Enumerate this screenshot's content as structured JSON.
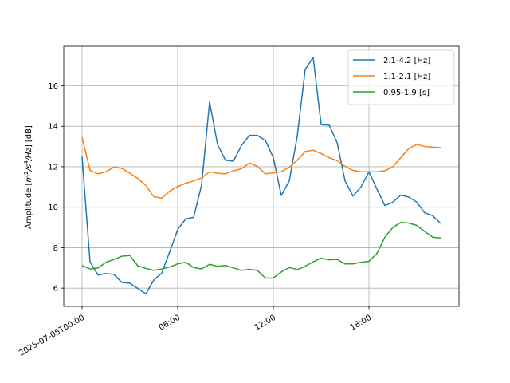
{
  "chart_data": {
    "type": "line",
    "title": "",
    "xlabel": "",
    "ylabel": "Amplitude [m^2/s^4/Hz] [dB]",
    "ylabel_parts": {
      "prefix": "Amplitude [",
      "unit_m": "m",
      "exp_m": "2",
      "slash1": "/",
      "unit_s": "s",
      "exp_s": "4",
      "rest": "/Hz",
      "suffix": "] [dB]"
    },
    "x_ticks": [
      {
        "hour": 0,
        "label": "2025-07-05T00:00"
      },
      {
        "hour": 6,
        "label": "06:00"
      },
      {
        "hour": 12,
        "label": "12:00"
      },
      {
        "hour": 18,
        "label": "18:00"
      }
    ],
    "y_ticks": [
      6,
      8,
      10,
      12,
      14,
      16
    ],
    "xlim_hours": [
      -1.15,
      23.65
    ],
    "ylim": [
      5.1,
      17.95
    ],
    "grid": true,
    "legend_position": "top-right",
    "x_hours": [
      0,
      0.5,
      1,
      1.5,
      2,
      2.5,
      3,
      3.5,
      4,
      4.5,
      5,
      5.5,
      6,
      6.5,
      7,
      7.5,
      8,
      8.5,
      9,
      9.5,
      10,
      10.5,
      11,
      11.5,
      12,
      12.5,
      13,
      13.5,
      14,
      14.5,
      15,
      15.5,
      16,
      16.5,
      17,
      17.5,
      18,
      18.5,
      19,
      19.5,
      20,
      20.5,
      21,
      21.5,
      22,
      22.5
    ],
    "series": [
      {
        "name": "2.1-4.2 [Hz]",
        "color": "#1f77b4",
        "values": [
          12.5,
          7.3,
          6.65,
          6.72,
          6.68,
          6.28,
          6.25,
          5.98,
          5.72,
          6.4,
          6.75,
          7.8,
          8.9,
          9.42,
          9.5,
          11.1,
          15.2,
          13.1,
          12.32,
          12.28,
          13.05,
          13.55,
          13.55,
          13.3,
          12.45,
          10.58,
          11.3,
          13.5,
          16.8,
          17.4,
          14.08,
          14.06,
          13.2,
          11.3,
          10.55,
          11.0,
          11.75,
          10.9,
          10.08,
          10.25,
          10.6,
          10.5,
          10.25,
          9.72,
          9.58,
          9.2
        ]
      },
      {
        "name": "1.1-2.1 [Hz]",
        "color": "#ff7f0e",
        "values": [
          13.45,
          11.82,
          11.65,
          11.75,
          11.98,
          11.92,
          11.68,
          11.42,
          11.08,
          10.52,
          10.45,
          10.8,
          11.02,
          11.18,
          11.3,
          11.45,
          11.75,
          11.68,
          11.65,
          11.8,
          11.9,
          12.18,
          12.02,
          11.65,
          11.7,
          11.75,
          11.98,
          12.32,
          12.75,
          12.82,
          12.65,
          12.45,
          12.3,
          12.02,
          11.82,
          11.75,
          11.75,
          11.75,
          11.8,
          12.0,
          12.45,
          12.9,
          13.1,
          13.0,
          12.97,
          12.95
        ]
      },
      {
        "name": "0.95-1.9 [s]",
        "color": "#2ca02c",
        "values": [
          7.12,
          6.95,
          7.0,
          7.28,
          7.42,
          7.58,
          7.62,
          7.1,
          6.98,
          6.88,
          6.95,
          7.05,
          7.2,
          7.28,
          7.02,
          6.95,
          7.18,
          7.08,
          7.12,
          7.0,
          6.88,
          6.93,
          6.88,
          6.5,
          6.5,
          6.8,
          7.02,
          6.92,
          7.08,
          7.3,
          7.48,
          7.4,
          7.42,
          7.2,
          7.2,
          7.28,
          7.32,
          7.72,
          8.52,
          9.0,
          9.25,
          9.22,
          9.1,
          8.8,
          8.52,
          8.48
        ]
      }
    ]
  }
}
